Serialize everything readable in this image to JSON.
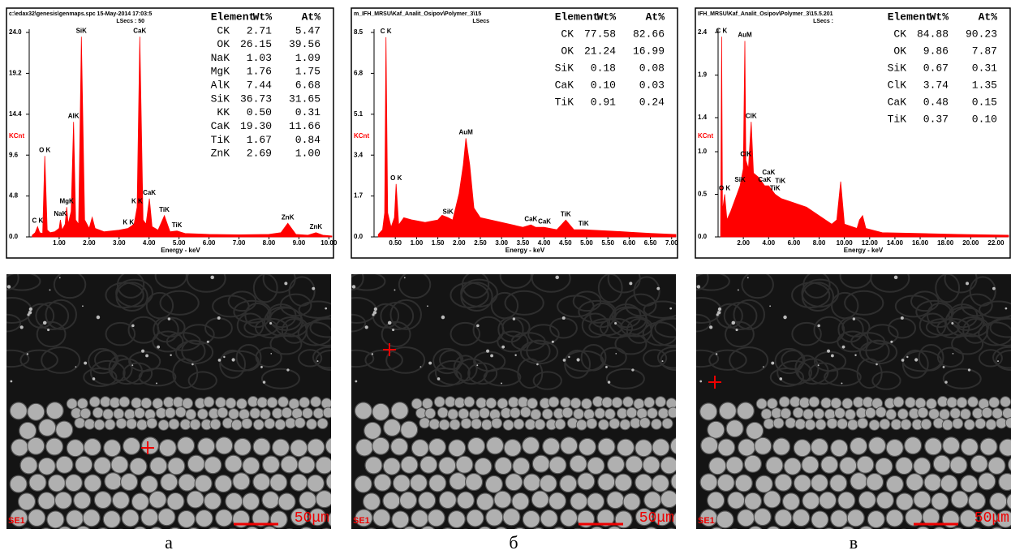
{
  "chart_data": [
    {
      "type": "area",
      "title": "c:\\edax32\\genesis\\genmaps.spc  15-May-2014 17:03:5",
      "subtitle": "LSecs : 50",
      "x_label": "Energy - keV",
      "y_label": "KCnt",
      "color": "#ff0000",
      "xlim": [
        0,
        10.1
      ],
      "ylim": [
        0,
        24
      ],
      "xticks": [
        {
          "value": 1,
          "label": "1.00"
        },
        {
          "value": 2,
          "label": "2.00"
        },
        {
          "value": 3,
          "label": "3.00"
        },
        {
          "value": 4,
          "label": "4.00"
        },
        {
          "value": 5,
          "label": "5.00"
        },
        {
          "value": 6,
          "label": "6.00"
        },
        {
          "value": 7,
          "label": "7.00"
        },
        {
          "value": 8,
          "label": "8.00"
        },
        {
          "value": 9,
          "label": "9.00"
        },
        {
          "value": 10,
          "label": "10.00"
        }
      ],
      "yticks": [
        {
          "value": 0,
          "label": "0.0"
        },
        {
          "value": 4.8,
          "label": "4.8"
        },
        {
          "value": 9.6,
          "label": "9.6"
        },
        {
          "value": 14.4,
          "label": "14.4"
        },
        {
          "value": 19.2,
          "label": "19.2"
        },
        {
          "value": 24,
          "label": "24.0"
        }
      ],
      "x": [
        0.1,
        0.2,
        0.28,
        0.35,
        0.45,
        0.52,
        0.6,
        0.7,
        0.85,
        1.0,
        1.04,
        1.1,
        1.2,
        1.25,
        1.3,
        1.4,
        1.48,
        1.55,
        1.65,
        1.74,
        1.85,
        2.0,
        2.1,
        2.2,
        2.5,
        3.0,
        3.3,
        3.5,
        3.6,
        3.69,
        3.8,
        3.9,
        4.01,
        4.1,
        4.3,
        4.51,
        4.7,
        4.93,
        5.2,
        6,
        7,
        8,
        8.4,
        8.63,
        8.9,
        9.3,
        9.57,
        9.8,
        10.1
      ],
      "values": [
        0.2,
        0.5,
        1.2,
        0.5,
        0.4,
        9.5,
        0.8,
        0.5,
        0.6,
        1.0,
        2.0,
        0.8,
        1.5,
        3.5,
        1.5,
        3.0,
        13.5,
        2.0,
        1.5,
        23.5,
        2.0,
        1.0,
        2.3,
        1.0,
        0.6,
        0.8,
        1.0,
        1.5,
        3.5,
        23.5,
        2.0,
        1.5,
        4.5,
        1.2,
        0.8,
        2.5,
        0.6,
        0.7,
        0.4,
        0.3,
        0.25,
        0.3,
        0.5,
        1.6,
        0.3,
        0.2,
        0.5,
        0.2,
        0.1
      ],
      "annotations": [
        {
          "text": "C K",
          "x": 0.28
        },
        {
          "text": "O K",
          "x": 0.52
        },
        {
          "text": "NaK",
          "x": 1.04
        },
        {
          "text": "MgK",
          "x": 1.25
        },
        {
          "text": "AlK",
          "x": 1.48
        },
        {
          "text": "SiK",
          "x": 1.74
        },
        {
          "text": "K K",
          "x": 3.31
        },
        {
          "text": "K K",
          "x": 3.6
        },
        {
          "text": "CaK",
          "x": 3.69
        },
        {
          "text": "CaK",
          "x": 4.01
        },
        {
          "text": "TiK",
          "x": 4.51
        },
        {
          "text": "TiK",
          "x": 4.93
        },
        {
          "text": "ZnK",
          "x": 8.63
        },
        {
          "text": "ZnK",
          "x": 9.57
        }
      ],
      "table": {
        "header": [
          "Element",
          "Wt%",
          "At%"
        ],
        "rows": [
          [
            "CK",
            "2.71",
            "5.47"
          ],
          [
            "OK",
            "26.15",
            "39.56"
          ],
          [
            "NaK",
            "1.03",
            "1.09"
          ],
          [
            "MgK",
            "1.76",
            "1.75"
          ],
          [
            "AlK",
            "7.44",
            "6.68"
          ],
          [
            "SiK",
            "36.73",
            "31.65"
          ],
          [
            "KK",
            "0.50",
            "0.31"
          ],
          [
            "CaK",
            "19.30",
            "11.66"
          ],
          [
            "TiK",
            "1.67",
            "0.84"
          ],
          [
            "ZnK",
            "2.69",
            "1.00"
          ]
        ]
      }
    },
    {
      "type": "area",
      "title": "m_IFH_MRSU\\Kaf_Analit_Osipov\\Polymer_3\\15",
      "subtitle": "LSecs",
      "x_label": "Energy - keV",
      "y_label": "KCnt",
      "color": "#ff0000",
      "xlim": [
        0,
        7.1
      ],
      "ylim": [
        0,
        8.5
      ],
      "xticks": [
        {
          "value": 0.5,
          "label": "0.50"
        },
        {
          "value": 1,
          "label": "1.00"
        },
        {
          "value": 1.5,
          "label": "1.50"
        },
        {
          "value": 2,
          "label": "2.00"
        },
        {
          "value": 2.5,
          "label": "2.50"
        },
        {
          "value": 3,
          "label": "3.00"
        },
        {
          "value": 3.5,
          "label": "3.50"
        },
        {
          "value": 4,
          "label": "4.00"
        },
        {
          "value": 4.5,
          "label": "4.50"
        },
        {
          "value": 5,
          "label": "5.00"
        },
        {
          "value": 5.5,
          "label": "5.50"
        },
        {
          "value": 6,
          "label": "6.00"
        },
        {
          "value": 6.5,
          "label": "6.50"
        },
        {
          "value": 7,
          "label": "7.00"
        }
      ],
      "yticks": [
        {
          "value": 0,
          "label": "0.0"
        },
        1.7,
        3.4,
        5.1,
        6.8,
        8.5
      ],
      "x": [
        0.1,
        0.2,
        0.25,
        0.28,
        0.32,
        0.4,
        0.48,
        0.52,
        0.58,
        0.7,
        0.9,
        1.2,
        1.5,
        1.6,
        1.74,
        1.85,
        2.0,
        2.1,
        2.16,
        2.25,
        2.35,
        2.5,
        3.0,
        3.5,
        3.69,
        3.8,
        4.0,
        4.3,
        4.51,
        4.7,
        4.93,
        5.5,
        6.0,
        6.5,
        7.1
      ],
      "values": [
        0.1,
        0.3,
        1.0,
        8.3,
        1.0,
        0.4,
        0.8,
        2.2,
        0.5,
        0.8,
        0.7,
        0.6,
        0.7,
        0.9,
        0.8,
        0.7,
        1.8,
        3.0,
        4.1,
        3.0,
        1.2,
        0.8,
        0.6,
        0.4,
        0.5,
        0.4,
        0.4,
        0.3,
        0.7,
        0.3,
        0.3,
        0.25,
        0.2,
        0.15,
        0.1
      ],
      "annotations": [
        {
          "text": "C K",
          "x": 0.28
        },
        {
          "text": "O K",
          "x": 0.52
        },
        {
          "text": "SiK",
          "x": 1.74
        },
        {
          "text": "AuM",
          "x": 2.16
        },
        {
          "text": "CaK",
          "x": 3.69
        },
        {
          "text": "CaK",
          "x": 4.01
        },
        {
          "text": "TiK",
          "x": 4.51
        },
        {
          "text": "TiK",
          "x": 4.93
        }
      ],
      "table": {
        "header": [
          "Element",
          "Wt%",
          "At%"
        ],
        "rows": [
          [
            "CK",
            "77.58",
            "82.66"
          ],
          [
            "OK",
            "21.24",
            "16.99"
          ],
          [
            "SiK",
            "0.18",
            "0.08"
          ],
          [
            "CaK",
            "0.10",
            "0.03"
          ],
          [
            "TiK",
            "0.91",
            "0.24"
          ]
        ]
      }
    },
    {
      "type": "area",
      "title": "IFH_MRSU\\Kaf_Analit_Osipov\\Polymer_3\\15.5.201",
      "subtitle": "LSecs :",
      "x_label": "Energy - keV",
      "y_label": "KCnt",
      "color": "#ff0000",
      "xlim": [
        0,
        23
      ],
      "ylim": [
        0,
        2.4
      ],
      "xticks": [
        {
          "value": 2,
          "label": "2.00"
        },
        {
          "value": 4,
          "label": "4.00"
        },
        {
          "value": 6,
          "label": "6.00"
        },
        {
          "value": 8,
          "label": "8.00"
        },
        {
          "value": 10,
          "label": "10.00"
        },
        {
          "value": 12,
          "label": "12.00"
        },
        {
          "value": 14,
          "label": "14.00"
        },
        {
          "value": 16,
          "label": "16.00"
        },
        {
          "value": 18,
          "label": "18.00"
        },
        {
          "value": 20,
          "label": "20.00"
        },
        {
          "value": 22,
          "label": "22.00"
        }
      ],
      "yticks": [
        {
          "value": 0,
          "label": "0.0"
        },
        0.5,
        {
          "value": 1,
          "label": "1.0"
        },
        1.4,
        1.9,
        2.4
      ],
      "x": [
        0.2,
        0.28,
        0.35,
        0.52,
        0.7,
        1.0,
        1.5,
        1.74,
        2.0,
        2.12,
        2.2,
        2.4,
        2.62,
        2.8,
        3.2,
        3.69,
        4.01,
        4.51,
        5,
        6,
        7,
        8,
        9,
        9.4,
        9.71,
        10,
        11,
        11.2,
        11.44,
        11.7,
        13,
        16,
        19,
        23
      ],
      "values": [
        0.1,
        2.35,
        0.3,
        0.5,
        0.2,
        0.3,
        0.5,
        0.6,
        0.8,
        2.3,
        0.9,
        0.8,
        1.35,
        0.75,
        0.7,
        0.6,
        0.6,
        0.5,
        0.45,
        0.4,
        0.35,
        0.25,
        0.15,
        0.2,
        0.65,
        0.15,
        0.1,
        0.2,
        0.25,
        0.1,
        0.05,
        0.04,
        0.03,
        0.02
      ],
      "annotations": [
        {
          "text": "C K",
          "x": 0.28
        },
        {
          "text": "O K",
          "x": 0.52
        },
        {
          "text": "SiK",
          "x": 1.74
        },
        {
          "text": "AuM",
          "x": 2.12
        },
        {
          "text": "ClK",
          "x": 2.2
        },
        {
          "text": "ClK",
          "x": 2.62
        },
        {
          "text": "CaK",
          "x": 3.69
        },
        {
          "text": "CaK",
          "x": 4.01
        },
        {
          "text": "TiK",
          "x": 4.51
        },
        {
          "text": "TiK",
          "x": 4.93
        }
      ],
      "table": {
        "header": [
          "Element",
          "Wt%",
          "At%"
        ],
        "rows": [
          [
            "CK",
            "84.88",
            "90.23"
          ],
          [
            "OK",
            "9.86",
            "7.87"
          ],
          [
            "SiK",
            "0.67",
            "0.31"
          ],
          [
            "ClK",
            "3.74",
            "1.35"
          ],
          [
            "CaK",
            "0.48",
            "0.15"
          ],
          [
            "TiK",
            "0.37",
            "0.10"
          ]
        ]
      }
    }
  ],
  "images": [
    {
      "detector": "SE1",
      "scale": "50μm"
    },
    {
      "detector": "SE1",
      "scale": "50μm"
    },
    {
      "detector": "SE1",
      "scale": "50μm"
    }
  ],
  "captions": [
    "а",
    "б",
    "в"
  ]
}
